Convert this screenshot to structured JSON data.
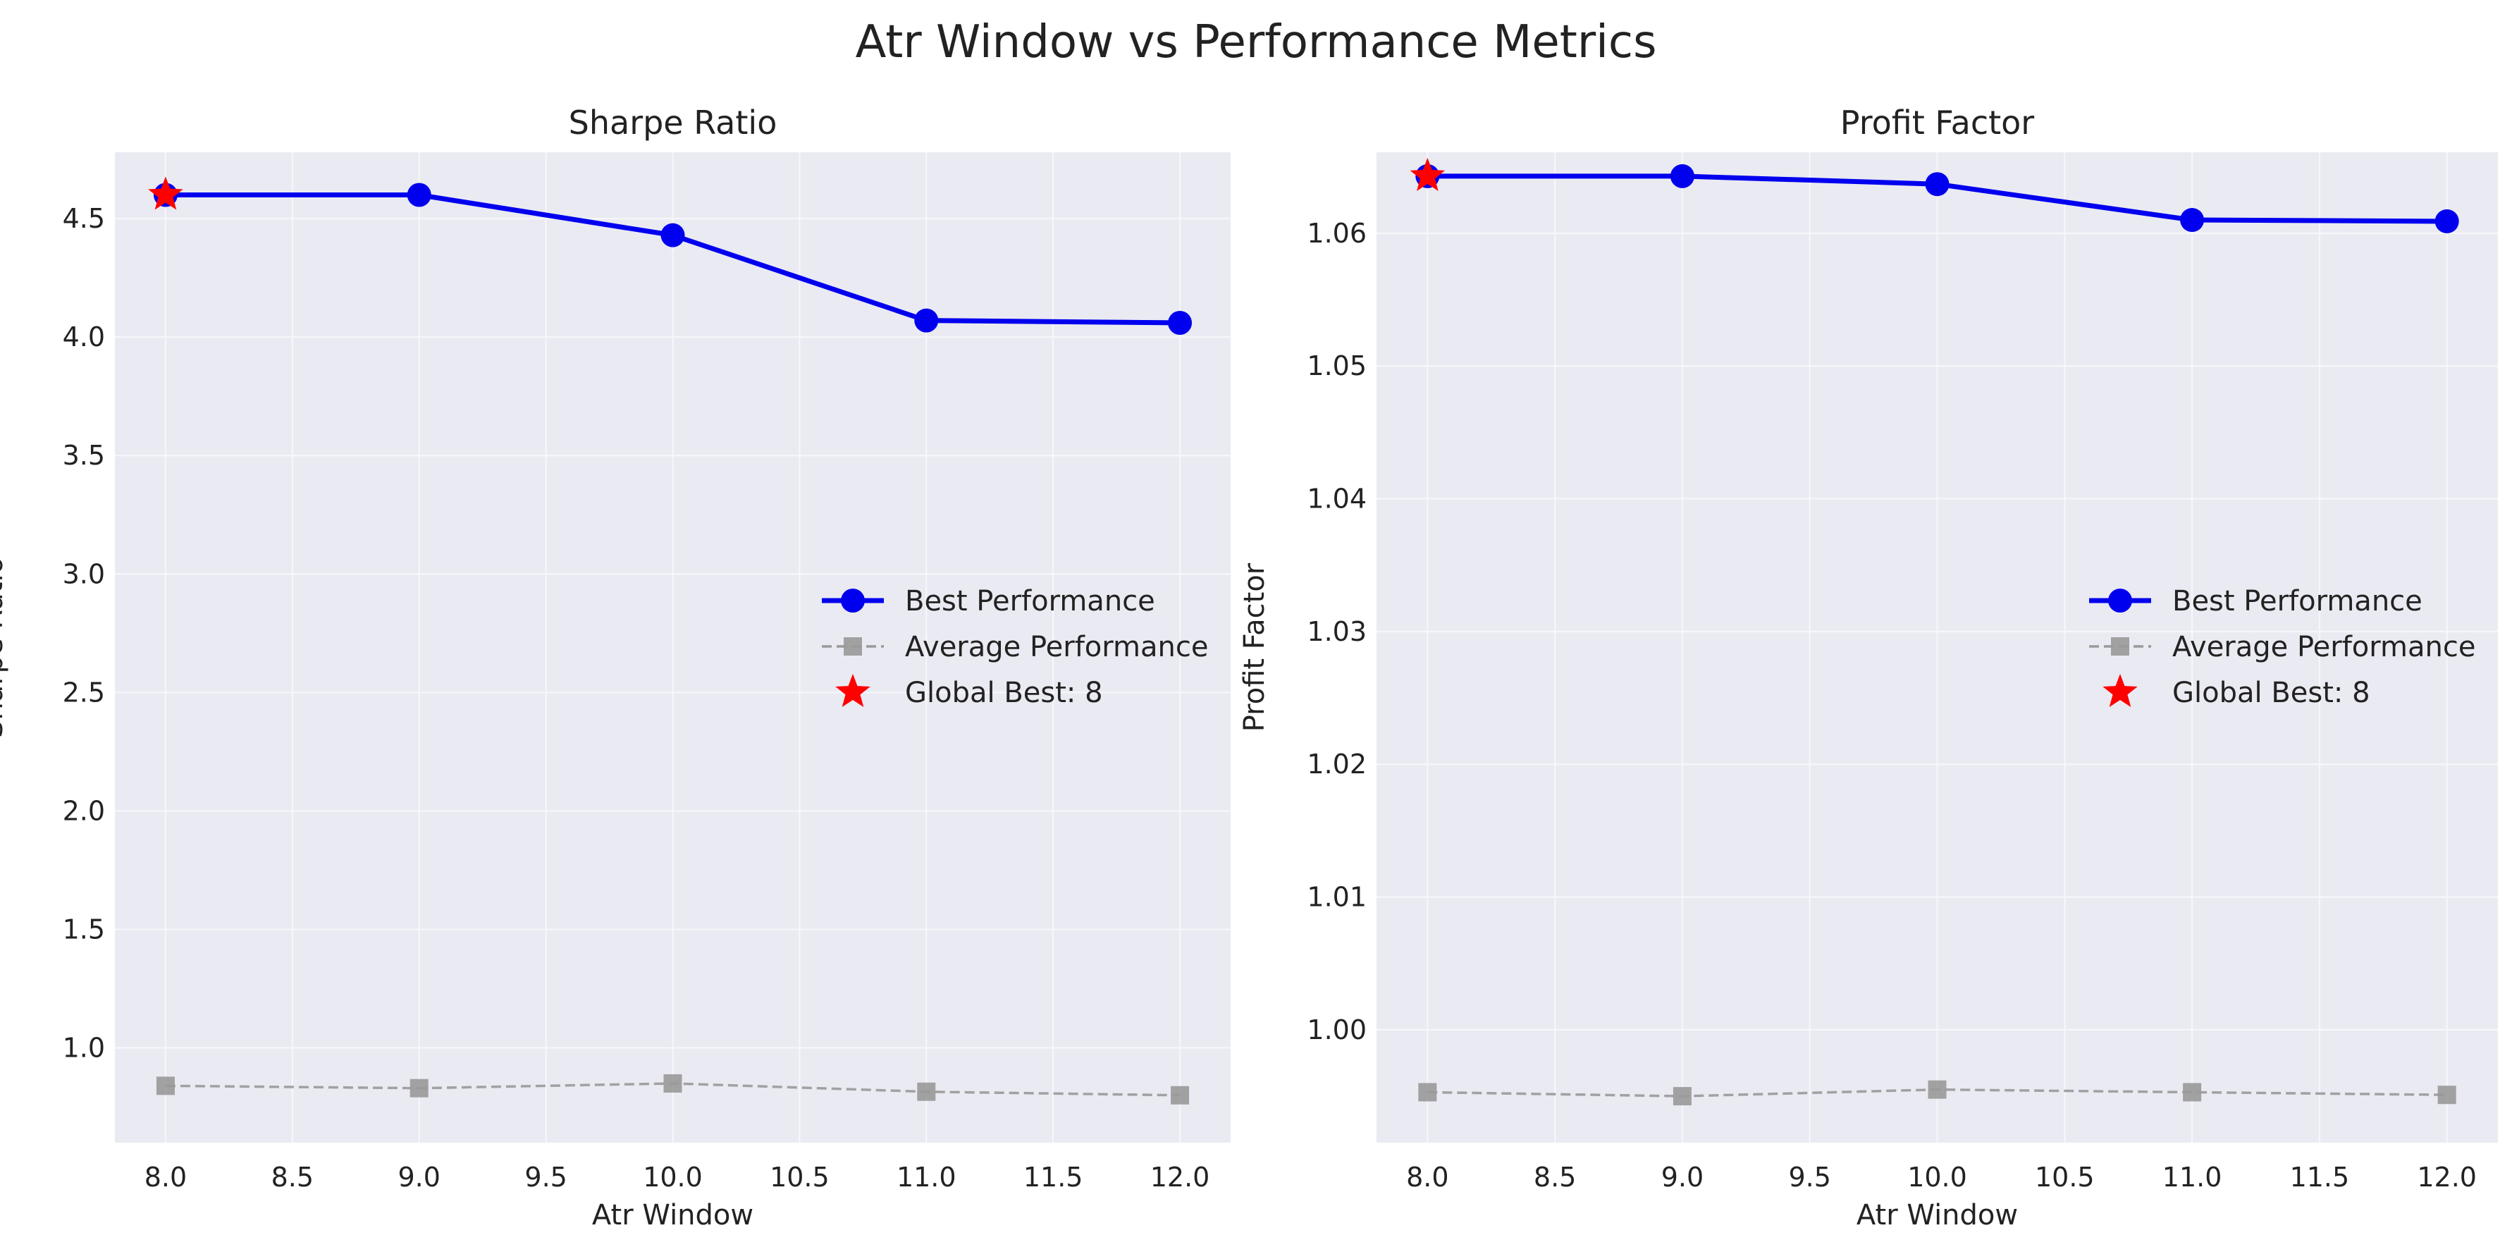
{
  "figure": {
    "title": "Atr Window vs Performance Metrics"
  },
  "colors": {
    "best": "#0000ee",
    "average": "#999999",
    "global_best": "#ff0000",
    "plot_background": "#eaeaf2",
    "grid": "#f7f7fb"
  },
  "chart_data": [
    {
      "type": "line",
      "title": "Sharpe Ratio",
      "xlabel": "Atr Window",
      "ylabel": "Sharpe Ratio",
      "x": [
        8,
        9,
        10,
        11,
        12
      ],
      "xlim": [
        7.8,
        12.2
      ],
      "ylim": [
        0.6,
        4.78
      ],
      "xticks": [
        8.0,
        8.5,
        9.0,
        9.5,
        10.0,
        10.5,
        11.0,
        11.5,
        12.0
      ],
      "yticks": [
        1.0,
        1.5,
        2.0,
        2.5,
        3.0,
        3.5,
        4.0,
        4.5
      ],
      "tick_decimals": {
        "x": 1,
        "y": 1
      },
      "grid": true,
      "legend_position": "center-right",
      "series": [
        {
          "name": "Best Performance",
          "style": "best",
          "values": [
            4.6,
            4.6,
            4.43,
            4.07,
            4.06
          ]
        },
        {
          "name": "Average Performance",
          "style": "average",
          "values": [
            0.84,
            0.83,
            0.85,
            0.815,
            0.8
          ]
        }
      ],
      "global_best": {
        "label": "Global Best: 8",
        "x": 8,
        "y": 4.6
      }
    },
    {
      "type": "line",
      "title": "Profit Factor",
      "xlabel": "Atr Window",
      "ylabel": "Profit Factor",
      "x": [
        8,
        9,
        10,
        11,
        12
      ],
      "xlim": [
        7.8,
        12.2
      ],
      "ylim": [
        0.9915,
        1.0661
      ],
      "xticks": [
        8.0,
        8.5,
        9.0,
        9.5,
        10.0,
        10.5,
        11.0,
        11.5,
        12.0
      ],
      "yticks": [
        1.0,
        1.01,
        1.02,
        1.03,
        1.04,
        1.05,
        1.06
      ],
      "tick_decimals": {
        "x": 1,
        "y": 2
      },
      "grid": true,
      "legend_position": "center-right",
      "series": [
        {
          "name": "Best Performance",
          "style": "best",
          "values": [
            1.0643,
            1.0643,
            1.0637,
            1.061,
            1.0609
          ]
        },
        {
          "name": "Average Performance",
          "style": "average",
          "values": [
            0.9953,
            0.995,
            0.9955,
            0.9953,
            0.9951
          ]
        }
      ],
      "global_best": {
        "label": "Global Best: 8",
        "x": 8,
        "y": 1.0643
      }
    }
  ]
}
